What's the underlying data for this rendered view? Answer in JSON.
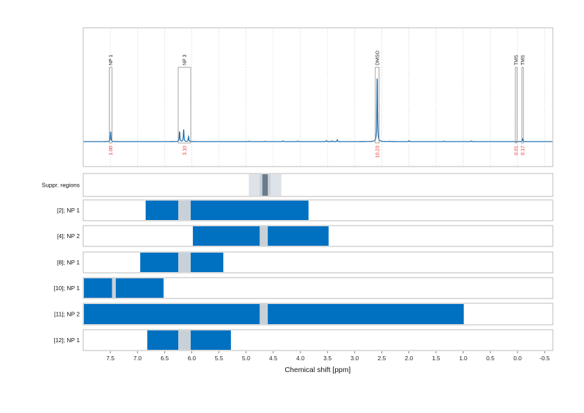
{
  "chart_data": {
    "type": "nmr-spectrum",
    "xlabel": "Chemical shift [ppm]",
    "x_ticks": [
      "7.5",
      "7.0",
      "6.5",
      "6.0",
      "5.5",
      "5.0",
      "4.5",
      "4.0",
      "3.5",
      "3.0",
      "2.5",
      "2.0",
      "1.5",
      "1.0",
      "0.5",
      "0.0",
      "-0.5"
    ],
    "x_tick_values": [
      7.5,
      7.0,
      6.5,
      6.0,
      5.5,
      5.0,
      4.5,
      4.0,
      3.5,
      3.0,
      2.5,
      2.0,
      1.5,
      1.0,
      0.5,
      0.0,
      -0.5
    ],
    "xlim": [
      8.0,
      -0.65
    ],
    "grid": true,
    "colors": {
      "signal": "#1f6fad",
      "band": "#0070c0",
      "suppressed": "#c9d1d8",
      "suppr_light": "#dde3e9",
      "suppr_dark": "#6a7b8b",
      "integral": "#e8312f"
    },
    "spectrum": {
      "peaks": [
        {
          "label": "NP 1",
          "start": 7.52,
          "end": 7.47,
          "integral": "1.00",
          "signals": [
            {
              "ppm": 7.495,
              "height": 0.12
            }
          ]
        },
        {
          "label": "NP 3",
          "start": 6.25,
          "end": 6.02,
          "integral": "3.10",
          "signals": [
            {
              "ppm": 6.225,
              "height": 0.12
            },
            {
              "ppm": 6.15,
              "height": 0.14
            },
            {
              "ppm": 6.06,
              "height": 0.06
            }
          ]
        },
        {
          "label": "DMSO",
          "start": 2.62,
          "end": 2.55,
          "integral": "10.23",
          "signals": [
            {
              "ppm": 2.585,
              "height": 0.78
            }
          ]
        },
        {
          "label": "TMS",
          "start": 0.04,
          "end": 0.01,
          "integral": "0.01",
          "signals": []
        },
        {
          "label": "TMS",
          "start": -0.08,
          "end": -0.11,
          "integral": "0.17",
          "signals": [
            {
              "ppm": -0.095,
              "height": 0.03
            }
          ]
        }
      ],
      "minor_signals": [
        {
          "ppm": 4.95,
          "height": 0.005
        },
        {
          "ppm": 4.65,
          "height": 0.004
        },
        {
          "ppm": 4.32,
          "height": 0.008
        },
        {
          "ppm": 4.05,
          "height": 0.006
        },
        {
          "ppm": 3.52,
          "height": 0.012
        },
        {
          "ppm": 3.42,
          "height": 0.008
        },
        {
          "ppm": 3.32,
          "height": 0.02
        },
        {
          "ppm": 2.35,
          "height": 0.005
        },
        {
          "ppm": 2.0,
          "height": 0.01
        },
        {
          "ppm": 1.35,
          "height": 0.006
        },
        {
          "ppm": 0.85,
          "height": 0.008
        }
      ]
    },
    "rows": [
      {
        "label": "Suppr. regions",
        "type": "suppression",
        "outer": [
          4.95,
          4.35
        ],
        "mid": [
          4.75,
          4.55
        ],
        "inner": [
          4.7,
          4.6
        ]
      },
      {
        "label": "[2]; NP 1",
        "bands": [
          [
            6.85,
            3.85
          ]
        ],
        "gaps": [
          [
            6.25,
            6.02
          ]
        ]
      },
      {
        "label": "[4]; NP 2",
        "bands": [
          [
            5.98,
            3.48
          ]
        ],
        "gaps": [
          [
            4.75,
            4.6
          ]
        ]
      },
      {
        "label": "[8]; NP 1",
        "bands": [
          [
            6.95,
            5.42
          ]
        ],
        "gaps": [
          [
            6.25,
            6.02
          ]
        ]
      },
      {
        "label": "[10]; NP 1",
        "bands": [
          [
            8.0,
            6.52
          ]
        ],
        "gaps": [
          [
            7.47,
            7.4
          ]
        ]
      },
      {
        "label": "[11]; NP 2",
        "bands": [
          [
            8.0,
            0.99
          ]
        ],
        "gaps": [
          [
            4.75,
            4.6
          ]
        ]
      },
      {
        "label": "[12]; NP 1",
        "bands": [
          [
            6.82,
            5.28
          ]
        ],
        "gaps": [
          [
            6.25,
            6.02
          ]
        ]
      }
    ]
  }
}
